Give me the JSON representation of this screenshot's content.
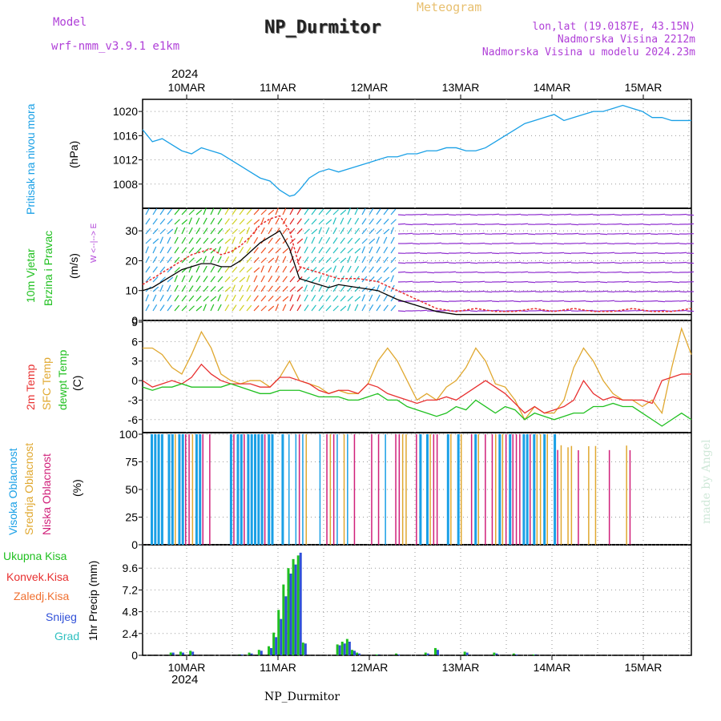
{
  "header": {
    "model_label": "Model",
    "model_name": "wrf-nmm_v3.9.1 e1km",
    "title": "NP_Durmitor",
    "product": "Meteogram",
    "location": "lon,lat (19.0187E, 43.15N)",
    "elevation": "Nadmorska Visina 2212m",
    "model_elevation": "Nadmorska Visina u modelu 2024.23m"
  },
  "footer": {
    "station": "NP_Durmitor"
  },
  "watermark": "made by Angel",
  "colors": {
    "pressure": "#1aa0e6",
    "temp2m": "#e83030",
    "sfc": "#e0a830",
    "dewpt": "#20c020",
    "high_cloud": "#1aa0e6",
    "mid_cloud": "#e0a830",
    "low_cloud": "#d0207a",
    "total_precip": "#20c020",
    "conv": "#e83030",
    "snow": "#3050d8",
    "frz": "#f07030",
    "grad": "#30c0c0"
  },
  "time_axis": {
    "year": "2024",
    "ticks": [
      "10MAR",
      "11MAR",
      "12MAR",
      "13MAR",
      "14MAR",
      "15MAR"
    ]
  },
  "panels": {
    "pressure": {
      "label": "Pritisak na nivou mora",
      "unit": "(hPa)"
    },
    "wind": {
      "label1": "10m Vjetar",
      "label2": "Brzina i Pravac",
      "unit": "(m/s)",
      "compass": "W <--|--> E"
    },
    "temp": {
      "label1": "2m Temp",
      "label2": "SFC Temp",
      "label3": "dewpt Temp",
      "unit": "(C)"
    },
    "cloud": {
      "label1": "Visoka Oblacnost",
      "label2": "Srednja Oblacnost",
      "label3": "Niska Oblacnost",
      "unit": "(%)"
    },
    "precip": {
      "unit": "1hr Precip (mm)",
      "legend": [
        "Ukupna Kisa",
        "Konvek.Kisa",
        "Zaledj.Kisa",
        "Snijeg",
        "Grad"
      ]
    }
  },
  "chart_data": [
    {
      "type": "line",
      "name": "pressure",
      "xlabel": "",
      "ylabel": "(hPa)",
      "ylim": [
        1004,
        1022
      ],
      "yticks": [
        1008,
        1012,
        1016,
        1020
      ],
      "x": [
        0,
        0.05,
        0.1,
        0.2,
        0.3,
        0.4,
        0.5,
        0.6,
        0.7,
        0.8,
        0.9,
        1.0,
        1.1,
        1.2,
        1.3,
        1.4,
        1.5,
        1.55,
        1.6,
        1.7,
        1.8,
        1.9,
        2.0,
        2.1,
        2.2,
        2.3,
        2.4,
        2.5,
        2.6,
        2.7,
        2.8,
        2.9,
        3.0,
        3.1,
        3.2,
        3.3,
        3.4,
        3.5,
        3.6,
        3.7,
        3.8,
        3.9,
        4.0,
        4.1,
        4.2,
        4.3,
        4.4,
        4.5,
        4.6,
        4.7,
        4.8,
        4.9,
        5.0,
        5.1,
        5.2,
        5.3,
        5.4,
        5.5,
        5.6
      ],
      "series": [
        {
          "values": [
            1017,
            1016,
            1015,
            1015.5,
            1014.5,
            1013.5,
            1013,
            1014,
            1013.5,
            1013,
            1012,
            1011,
            1010,
            1009,
            1008.5,
            1007,
            1006,
            1006.2,
            1007,
            1009,
            1010,
            1010.5,
            1010,
            1010.5,
            1011,
            1011.5,
            1012,
            1012.5,
            1012.5,
            1013,
            1013,
            1013.5,
            1013.5,
            1014,
            1014,
            1013.5,
            1013.5,
            1014,
            1015,
            1016,
            1017,
            1018,
            1018.5,
            1019,
            1019.5,
            1018.5,
            1019,
            1019.5,
            1020,
            1020,
            1020.5,
            1021,
            1020.5,
            1020,
            1019,
            1019,
            1018.5,
            1018.5,
            1018.5
          ]
        }
      ]
    },
    {
      "type": "line",
      "name": "wind",
      "xlabel": "",
      "ylabel": "(m/s)",
      "ylim": [
        0,
        37
      ],
      "yticks": [
        0,
        10,
        20,
        30
      ],
      "x": [
        0,
        0.1,
        0.2,
        0.3,
        0.4,
        0.5,
        0.6,
        0.7,
        0.8,
        0.9,
        1.0,
        1.1,
        1.2,
        1.3,
        1.4,
        1.5,
        1.6,
        1.7,
        1.8,
        1.9,
        2.0,
        2.2,
        2.4,
        2.6,
        2.8,
        3.0,
        3.2,
        3.4,
        3.6,
        3.8,
        4.0,
        4.2,
        4.4,
        4.6,
        4.8,
        5.0,
        5.2,
        5.4,
        5.6
      ],
      "series": [
        {
          "name": "speed",
          "values": [
            10,
            11,
            13,
            15,
            17,
            18,
            19,
            19,
            18,
            18,
            20,
            23,
            26,
            28,
            30,
            24,
            14,
            13,
            12,
            11,
            12,
            11,
            10,
            7,
            5,
            3,
            2,
            2,
            2,
            2,
            2,
            2,
            2,
            2,
            2,
            2,
            2,
            2,
            2
          ]
        },
        {
          "name": "gust",
          "values": [
            12,
            14,
            16,
            18,
            20,
            22,
            23,
            24,
            22,
            23,
            25,
            28,
            32,
            34,
            35,
            30,
            18,
            17,
            16,
            15,
            14,
            14,
            13,
            10,
            7,
            4,
            3,
            4,
            3,
            3,
            4,
            3,
            4,
            3,
            3,
            4,
            3,
            3,
            4
          ]
        }
      ]
    },
    {
      "type": "line",
      "name": "temperature",
      "xlabel": "",
      "ylabel": "(C)",
      "ylim": [
        -8,
        9
      ],
      "yticks": [
        -6,
        -3,
        0,
        3,
        6,
        9
      ],
      "x": [
        0,
        0.1,
        0.2,
        0.3,
        0.4,
        0.5,
        0.6,
        0.7,
        0.8,
        0.9,
        1.0,
        1.1,
        1.2,
        1.3,
        1.4,
        1.5,
        1.6,
        1.7,
        1.8,
        1.9,
        2.0,
        2.1,
        2.2,
        2.3,
        2.4,
        2.5,
        2.6,
        2.7,
        2.8,
        2.9,
        3.0,
        3.1,
        3.2,
        3.3,
        3.4,
        3.5,
        3.6,
        3.7,
        3.8,
        3.9,
        4.0,
        4.1,
        4.2,
        4.3,
        4.4,
        4.5,
        4.6,
        4.7,
        4.8,
        4.9,
        5.0,
        5.1,
        5.2,
        5.3,
        5.4,
        5.5,
        5.6
      ],
      "series": [
        {
          "name": "2m Temp",
          "values": [
            0,
            -1,
            -0.5,
            0,
            -0.5,
            0.5,
            2.5,
            1,
            0,
            -0.5,
            -0.5,
            -0.5,
            -1,
            -1,
            0.5,
            0.5,
            0,
            -0.5,
            -1.5,
            -2,
            -1.5,
            -1.5,
            -2,
            -0.5,
            -1,
            -2,
            -2.5,
            -3,
            -3.5,
            -3,
            -3,
            -2.5,
            -3,
            -2,
            -1,
            0,
            -1,
            -2,
            -3.5,
            -5,
            -4,
            -5,
            -4.5,
            -4,
            -3,
            0,
            -2,
            -3,
            -2.5,
            -3,
            -3,
            -3,
            -3.5,
            0,
            0.5,
            1,
            1
          ]
        },
        {
          "name": "SFC Temp",
          "values": [
            5,
            5,
            4,
            2,
            1,
            4,
            7.5,
            5,
            1,
            0,
            -0.5,
            0,
            0,
            -1,
            0.5,
            3,
            0,
            -0.5,
            -1,
            -2,
            -1.5,
            -2,
            -2,
            -0.5,
            3,
            5,
            3,
            0,
            -3,
            -2,
            -3,
            -1,
            0,
            2,
            5,
            3,
            -0.5,
            -1,
            -3,
            -6,
            -4,
            -5,
            -5,
            -3,
            2,
            5,
            3,
            0,
            -2,
            -3,
            -3,
            -4,
            -3,
            -5,
            2,
            8,
            4
          ]
        },
        {
          "name": "dewpt Temp",
          "values": [
            -1,
            -1.5,
            -1,
            -1,
            -0.5,
            -1,
            -1,
            -1,
            -1,
            -0.5,
            -1,
            -1.5,
            -2,
            -2,
            -1.5,
            -1.5,
            -1.5,
            -2,
            -2.5,
            -2.5,
            -2.5,
            -3,
            -3,
            -2.5,
            -2,
            -3,
            -3,
            -4,
            -4.5,
            -5,
            -5.5,
            -5,
            -4,
            -4.5,
            -3,
            -4,
            -5,
            -4,
            -4.5,
            -6,
            -5,
            -5.5,
            -6,
            -5.5,
            -5,
            -5,
            -4,
            -4,
            -3.5,
            -4,
            -4,
            -5,
            -6,
            -7,
            -6,
            -5,
            -6
          ]
        }
      ]
    },
    {
      "type": "bar",
      "name": "cloud cover",
      "ylabel": "(%)",
      "ylim": [
        0,
        100
      ],
      "yticks": [
        0,
        25,
        50,
        75,
        100
      ]
    },
    {
      "type": "bar",
      "name": "precipitation",
      "ylabel": "1hr Precip (mm)",
      "ylim": [
        0,
        12
      ],
      "yticks": [
        0,
        2.4,
        4.8,
        7.2,
        9.6
      ],
      "x": [
        0.3,
        0.4,
        0.5,
        1.0,
        1.1,
        1.2,
        1.3,
        1.35,
        1.4,
        1.45,
        1.5,
        1.55,
        1.6,
        1.65,
        2.0,
        2.05,
        2.1,
        2.15,
        2.2,
        2.4,
        2.6,
        2.9,
        3.0,
        3.3,
        3.6,
        3.8,
        4.0
      ],
      "series": [
        {
          "name": "Ukupna Kisa",
          "values": [
            0.3,
            0.4,
            0.5,
            0.1,
            0.3,
            0.6,
            1.0,
            2.5,
            5.0,
            7.8,
            9.6,
            10.6,
            11.0,
            1.4,
            1.2,
            1.5,
            1.8,
            0.6,
            0.3,
            0.1,
            0.2,
            0.3,
            0.8,
            0.4,
            0.3,
            0.2,
            0.1
          ]
        },
        {
          "name": "Snijeg",
          "values": [
            0.3,
            0.3,
            0.4,
            0.1,
            0.2,
            0.5,
            0.8,
            2.0,
            4.0,
            6.5,
            9.0,
            10.0,
            11.3,
            1.3,
            1.1,
            1.3,
            1.5,
            0.5,
            0.2,
            0.1,
            0.1,
            0.2,
            0.6,
            0.3,
            0.2,
            0.1,
            0.1
          ]
        }
      ]
    }
  ]
}
